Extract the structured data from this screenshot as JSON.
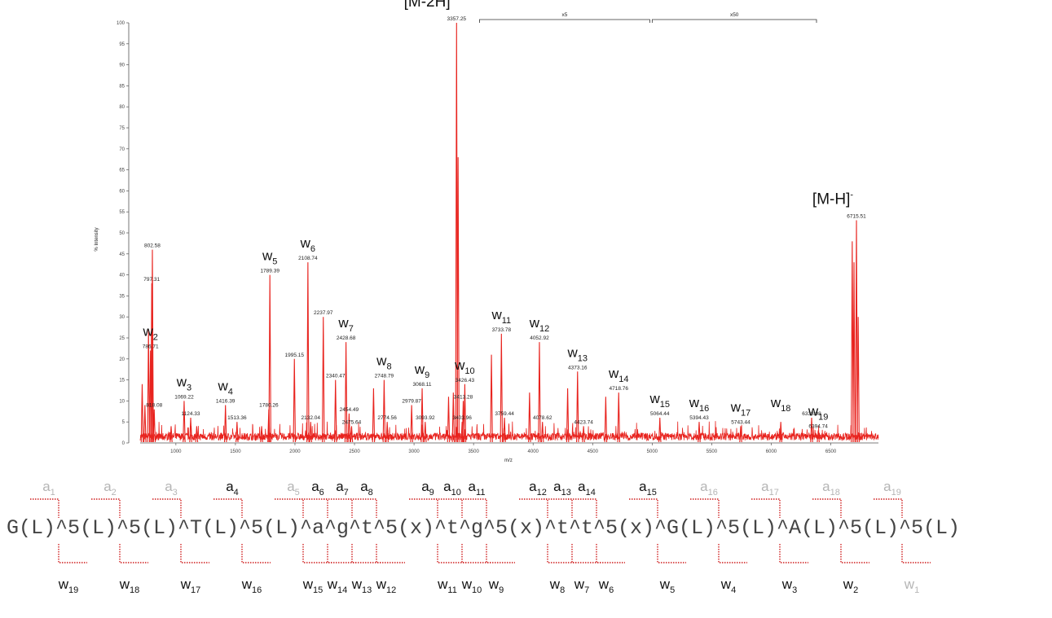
{
  "colors": {
    "spectrum": "#e8231e",
    "frag_line": "#cf1f1f",
    "grey_frag": "#b5b5b5",
    "dark_frag": "#111111"
  },
  "chart_data": {
    "type": "line",
    "xlabel": "m/z",
    "ylabel": "% Intensity",
    "xlim": [
      700,
      6900
    ],
    "ylim": [
      0,
      100
    ],
    "x_ticks": [
      1000,
      1500,
      2000,
      2500,
      3000,
      3500,
      4000,
      4500,
      5000,
      5500,
      6000,
      6500
    ],
    "y_ticks": [
      0,
      5,
      10,
      15,
      20,
      25,
      30,
      35,
      40,
      45,
      50,
      55,
      60,
      65,
      70,
      75,
      80,
      85,
      90,
      95,
      100
    ],
    "zoom_regions": [
      {
        "label": "x5",
        "from": 3550,
        "to": 4980
      },
      {
        "label": "x50",
        "from": 5000,
        "to": 6380
      }
    ],
    "peaks": [
      {
        "mz": 717,
        "intensity": 14
      },
      {
        "mz": 740,
        "intensity": 9
      },
      {
        "mz": 770,
        "intensity": 27
      },
      {
        "mz": 786.71,
        "intensity": 22,
        "label": "786.71"
      },
      {
        "mz": 797.31,
        "intensity": 38,
        "label": "797.31"
      },
      {
        "mz": 802.58,
        "intensity": 46,
        "label": "802.58"
      },
      {
        "mz": 818.08,
        "intensity": 8,
        "label": "818.08"
      },
      {
        "mz": 960,
        "intensity": 4
      },
      {
        "mz": 1069.22,
        "intensity": 10,
        "label": "1069.22"
      },
      {
        "mz": 1124.33,
        "intensity": 6,
        "label": "1124.33"
      },
      {
        "mz": 1175,
        "intensity": 4
      },
      {
        "mz": 1416.39,
        "intensity": 9,
        "label": "1416.39"
      },
      {
        "mz": 1513.36,
        "intensity": 5,
        "label": "1513.36"
      },
      {
        "mz": 1720,
        "intensity": 4
      },
      {
        "mz": 1780.26,
        "intensity": 8,
        "label": "1780.26"
      },
      {
        "mz": 1789.39,
        "intensity": 40,
        "label": "1789.39"
      },
      {
        "mz": 1995.15,
        "intensity": 20,
        "label": "1995.15"
      },
      {
        "mz": 2108.74,
        "intensity": 43,
        "label": "2108.74"
      },
      {
        "mz": 2132.04,
        "intensity": 5,
        "label": "2132.04"
      },
      {
        "mz": 2237.97,
        "intensity": 30,
        "label": "2237.97"
      },
      {
        "mz": 2340.47,
        "intensity": 15,
        "label": "2340.47"
      },
      {
        "mz": 2428.68,
        "intensity": 24,
        "label": "2428.68"
      },
      {
        "mz": 2454.49,
        "intensity": 7,
        "label": "2454.49"
      },
      {
        "mz": 2475.64,
        "intensity": 4,
        "label": "2475.64"
      },
      {
        "mz": 2660,
        "intensity": 13
      },
      {
        "mz": 2748.79,
        "intensity": 15,
        "label": "2748.79"
      },
      {
        "mz": 2774.56,
        "intensity": 5,
        "label": "2774.56"
      },
      {
        "mz": 2979.87,
        "intensity": 9,
        "label": "2979.87"
      },
      {
        "mz": 3068.11,
        "intensity": 13,
        "label": "3068.11"
      },
      {
        "mz": 3093.92,
        "intensity": 5,
        "label": "3093.92"
      },
      {
        "mz": 3290,
        "intensity": 11
      },
      {
        "mz": 3330,
        "intensity": 12
      },
      {
        "mz": 3357.25,
        "intensity": 100,
        "label": "3357.25"
      },
      {
        "mz": 3370,
        "intensity": 68
      },
      {
        "mz": 3403.96,
        "intensity": 5,
        "label": "3403.96"
      },
      {
        "mz": 3413.28,
        "intensity": 10,
        "label": "3413.28"
      },
      {
        "mz": 3426.43,
        "intensity": 14,
        "label": "3426.43"
      },
      {
        "mz": 3650,
        "intensity": 21
      },
      {
        "mz": 3733.78,
        "intensity": 26,
        "label": "3733.78"
      },
      {
        "mz": 3759.44,
        "intensity": 6,
        "label": "3759.44"
      },
      {
        "mz": 3970,
        "intensity": 12
      },
      {
        "mz": 4052.92,
        "intensity": 24,
        "label": "4052.92"
      },
      {
        "mz": 4078.62,
        "intensity": 5,
        "label": "4078.62"
      },
      {
        "mz": 4290,
        "intensity": 13
      },
      {
        "mz": 4373.16,
        "intensity": 17,
        "label": "4373.16"
      },
      {
        "mz": 4423.74,
        "intensity": 4,
        "label": "4423.74"
      },
      {
        "mz": 4610,
        "intensity": 11
      },
      {
        "mz": 4718.76,
        "intensity": 12,
        "label": "4718.76"
      },
      {
        "mz": 5064.44,
        "intensity": 6,
        "label": "5064.44"
      },
      {
        "mz": 5394.43,
        "intensity": 5,
        "label": "5394.43"
      },
      {
        "mz": 5743.44,
        "intensity": 4,
        "label": "5743.44"
      },
      {
        "mz": 6080,
        "intensity": 5
      },
      {
        "mz": 6338.98,
        "intensity": 6,
        "label": "6338.98"
      },
      {
        "mz": 6394.74,
        "intensity": 3,
        "label": "6394.74"
      },
      {
        "mz": 6680,
        "intensity": 48
      },
      {
        "mz": 6695,
        "intensity": 43
      },
      {
        "mz": 6715.51,
        "intensity": 53,
        "label": "6715.51"
      },
      {
        "mz": 6730,
        "intensity": 30
      }
    ],
    "ion_annotations": [
      {
        "ion": "w",
        "sub": "2",
        "mz": 786.71
      },
      {
        "ion": "w",
        "sub": "3",
        "mz": 1069.22
      },
      {
        "ion": "w",
        "sub": "4",
        "mz": 1416.39
      },
      {
        "ion": "w",
        "sub": "5",
        "mz": 1789.39
      },
      {
        "ion": "w",
        "sub": "6",
        "mz": 2108.74
      },
      {
        "ion": "w",
        "sub": "7",
        "mz": 2428.68
      },
      {
        "ion": "w",
        "sub": "8",
        "mz": 2748.79
      },
      {
        "ion": "w",
        "sub": "9",
        "mz": 3068.11
      },
      {
        "ion": "w",
        "sub": "10",
        "mz": 3426.43
      },
      {
        "ion": "w",
        "sub": "11",
        "mz": 3733.78
      },
      {
        "ion": "w",
        "sub": "12",
        "mz": 4052.92
      },
      {
        "ion": "w",
        "sub": "13",
        "mz": 4373.16
      },
      {
        "ion": "w",
        "sub": "14",
        "mz": 4718.76
      },
      {
        "ion": "w",
        "sub": "15",
        "mz": 5064.44
      },
      {
        "ion": "w",
        "sub": "16",
        "mz": 5394.43
      },
      {
        "ion": "w",
        "sub": "17",
        "mz": 5743.44
      },
      {
        "ion": "w",
        "sub": "18",
        "mz": 6080
      },
      {
        "ion": "w",
        "sub": "19",
        "mz": 6394.74
      }
    ],
    "parent_ions": [
      {
        "label": "[M-2H]",
        "charge": "-",
        "mz": 3357.25
      },
      {
        "label": "[M-H]",
        "charge": "-",
        "mz": 6715.51
      }
    ]
  },
  "sequence": {
    "tokens": [
      "G(L)",
      "^5(L)",
      "^5(L)",
      "^T(L)",
      "^5(L)",
      "^a",
      "^g",
      "^t",
      "^5(x)",
      "^t",
      "^g",
      "^5(x)",
      "^t",
      "^t",
      "^5(x)",
      "^G(L)",
      "^5(L)",
      "^A(L)",
      "^5(L)",
      "^5(L)"
    ],
    "a_ions": [
      {
        "sub": "1",
        "observed": false
      },
      {
        "sub": "2",
        "observed": false
      },
      {
        "sub": "3",
        "observed": false
      },
      {
        "sub": "4",
        "observed": true
      },
      {
        "sub": "5",
        "observed": false
      },
      {
        "sub": "6",
        "observed": true
      },
      {
        "sub": "7",
        "observed": true
      },
      {
        "sub": "8",
        "observed": true
      },
      {
        "sub": "9",
        "observed": true
      },
      {
        "sub": "10",
        "observed": true
      },
      {
        "sub": "11",
        "observed": true
      },
      {
        "sub": "12",
        "observed": true
      },
      {
        "sub": "13",
        "observed": true
      },
      {
        "sub": "14",
        "observed": true
      },
      {
        "sub": "15",
        "observed": true
      },
      {
        "sub": "16",
        "observed": false
      },
      {
        "sub": "17",
        "observed": false
      },
      {
        "sub": "18",
        "observed": false
      },
      {
        "sub": "19",
        "observed": false
      }
    ],
    "w_ions": [
      {
        "sub": "19",
        "observed": true
      },
      {
        "sub": "18",
        "observed": true
      },
      {
        "sub": "17",
        "observed": true
      },
      {
        "sub": "16",
        "observed": true
      },
      {
        "sub": "15",
        "observed": true
      },
      {
        "sub": "14",
        "observed": true
      },
      {
        "sub": "13",
        "observed": true
      },
      {
        "sub": "12",
        "observed": true
      },
      {
        "sub": "11",
        "observed": true
      },
      {
        "sub": "10",
        "observed": true
      },
      {
        "sub": "9",
        "observed": true
      },
      {
        "sub": "8",
        "observed": true
      },
      {
        "sub": "7",
        "observed": true
      },
      {
        "sub": "6",
        "observed": true
      },
      {
        "sub": "5",
        "observed": true
      },
      {
        "sub": "4",
        "observed": true
      },
      {
        "sub": "3",
        "observed": true
      },
      {
        "sub": "2",
        "observed": true
      },
      {
        "sub": "1",
        "observed": false
      }
    ]
  }
}
